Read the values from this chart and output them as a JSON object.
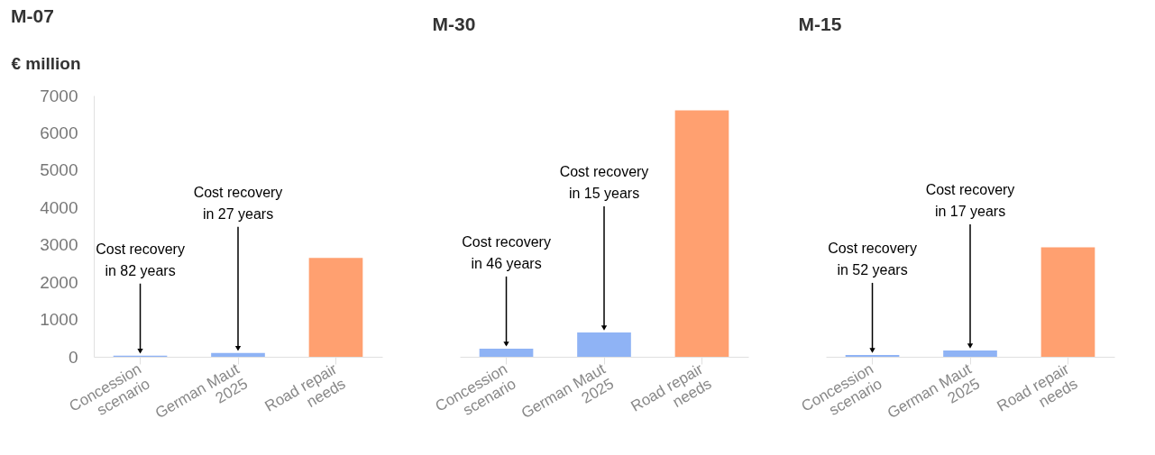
{
  "chart_data": [
    {
      "type": "bar",
      "title": "M-07",
      "ylabel": "€ million",
      "categories": [
        "Concession\nscenario",
        "German Maut\n2025",
        "Road repair\nneeds"
      ],
      "values": [
        30,
        100,
        2650
      ],
      "colors": [
        "#8fb3f5",
        "#8fb3f5",
        "#ffa070"
      ],
      "ylim": [
        0,
        7000
      ],
      "yticks": [
        0,
        1000,
        2000,
        3000,
        4000,
        5000,
        6000,
        7000
      ],
      "annotations": [
        {
          "text": "Cost recovery\nin 82 years",
          "x": "Concession\nscenario",
          "y": 30
        },
        {
          "text": "Cost recovery\nin 27 years",
          "x": "German Maut\n2025",
          "y": 100
        }
      ]
    },
    {
      "type": "bar",
      "title": "M-30",
      "categories": [
        "Concession\nscenario",
        "German Maut\n2025",
        "Road repair\nneeds"
      ],
      "values": [
        220,
        650,
        6600
      ],
      "colors": [
        "#8fb3f5",
        "#8fb3f5",
        "#ffa070"
      ],
      "ylim": [
        0,
        7000
      ],
      "tick_labels": "x",
      "annotations": [
        {
          "text": "Cost recovery\nin 46 years",
          "x": "Concession\nscenario",
          "y": 220
        },
        {
          "text": "Cost recovery\nin 15 years",
          "x": "German Maut\n2025",
          "y": 650
        }
      ]
    },
    {
      "type": "bar",
      "title": "M-15",
      "categories": [
        "Concession\nscenario",
        "German Maut\n2025",
        "Road repair\nneeds"
      ],
      "values": [
        50,
        170,
        2930
      ],
      "colors": [
        "#8fb3f5",
        "#8fb3f5",
        "#ffa070"
      ],
      "ylim": [
        0,
        7000
      ],
      "tick_labels": "x",
      "annotations": [
        {
          "text": "Cost recovery\nin 52 years",
          "x": "Concession\nscenario",
          "y": 50
        },
        {
          "text": "Cost recovery\nin 17 years",
          "x": "German Maut\n2025",
          "y": 170
        }
      ]
    }
  ]
}
